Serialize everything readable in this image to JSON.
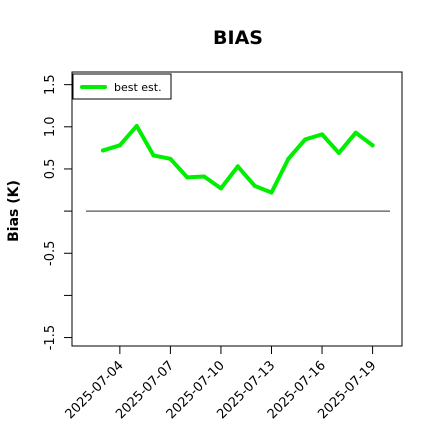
{
  "chart_data": {
    "type": "line",
    "title": "BIAS",
    "ylabel": "Bias (K)",
    "xlabel": "",
    "ylim": [
      -1.6,
      1.65
    ],
    "yticks": [
      -1.5,
      -1.0,
      -0.5,
      0.0,
      0.5,
      1.0,
      1.5
    ],
    "ytick_labels": [
      "-1.5",
      "",
      "-0.5",
      "",
      "0.5",
      "1.0",
      "1.5"
    ],
    "xticks": [
      "2025-07-04",
      "2025-07-07",
      "2025-07-10",
      "2025-07-13",
      "2025-07-16",
      "2025-07-19"
    ],
    "x": [
      "2025-07-03",
      "2025-07-04",
      "2025-07-05",
      "2025-07-06",
      "2025-07-07",
      "2025-07-08",
      "2025-07-09",
      "2025-07-10",
      "2025-07-11",
      "2025-07-12",
      "2025-07-13",
      "2025-07-14",
      "2025-07-15",
      "2025-07-16",
      "2025-07-17",
      "2025-07-18",
      "2025-07-19"
    ],
    "series": [
      {
        "name": "best est.",
        "color": "#00ee00",
        "values": [
          0.72,
          0.78,
          1.01,
          0.66,
          0.62,
          0.4,
          0.41,
          0.27,
          0.53,
          0.3,
          0.22,
          0.62,
          0.85,
          0.91,
          0.69,
          0.93,
          0.78
        ]
      }
    ],
    "reference_line": {
      "y": 0.0,
      "color": "#555555"
    },
    "legend": {
      "position": "top-left"
    },
    "grid": false
  }
}
